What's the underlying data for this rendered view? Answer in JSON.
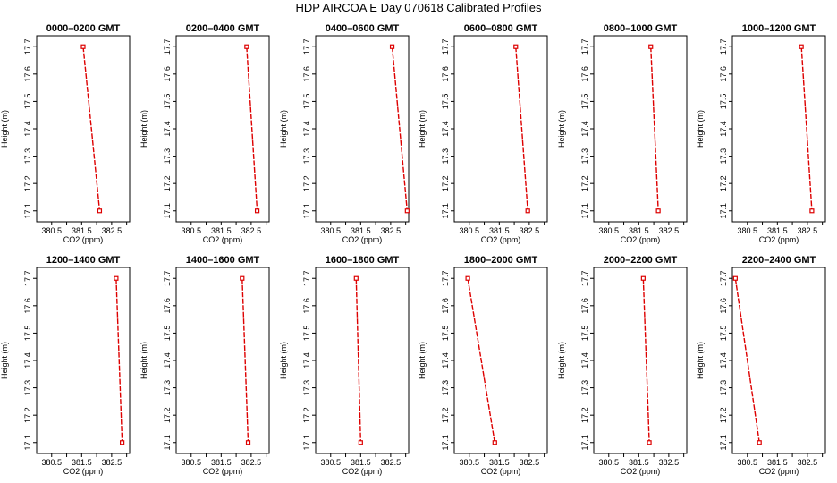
{
  "figure": {
    "title": "HDP  AIRCOA E  Day 070618  Calibrated Profiles",
    "line_color": "#dd0000",
    "point_color": "#dd0000",
    "axis_color": "#000000"
  },
  "chart_data": [
    {
      "type": "line",
      "title": "0000–0200 GMT",
      "xlabel": "CO2 (ppm)",
      "ylabel": "Height (m)",
      "xlim": [
        380.0,
        383.1
      ],
      "ylim": [
        17.06,
        17.74
      ],
      "xticks": [
        "380.5",
        "381.5",
        "382.5"
      ],
      "xticks_minor": [
        381.0,
        382.0,
        383.0
      ],
      "yticks": [
        "17.1",
        "17.2",
        "17.3",
        "17.4",
        "17.5",
        "17.6",
        "17.7"
      ],
      "grid": false,
      "series": [
        {
          "x": [
            381.55,
            382.1
          ],
          "y": [
            17.7,
            17.1
          ]
        }
      ]
    },
    {
      "type": "line",
      "title": "0200–0400 GMT",
      "xlabel": "CO2 (ppm)",
      "ylabel": "Height (m)",
      "xlim": [
        380.0,
        383.1
      ],
      "ylim": [
        17.06,
        17.74
      ],
      "xticks": [
        "380.5",
        "381.5",
        "382.5"
      ],
      "xticks_minor": [
        381.0,
        382.0,
        383.0
      ],
      "yticks": [
        "17.1",
        "17.2",
        "17.3",
        "17.4",
        "17.5",
        "17.6",
        "17.7"
      ],
      "grid": false,
      "series": [
        {
          "x": [
            382.35,
            382.7
          ],
          "y": [
            17.7,
            17.1
          ]
        }
      ]
    },
    {
      "type": "line",
      "title": "0400–0600 GMT",
      "xlabel": "CO2 (ppm)",
      "ylabel": "Height (m)",
      "xlim": [
        380.0,
        383.1
      ],
      "ylim": [
        17.06,
        17.74
      ],
      "xticks": [
        "380.5",
        "381.5",
        "382.5"
      ],
      "xticks_minor": [
        381.0,
        382.0,
        383.0
      ],
      "yticks": [
        "17.1",
        "17.2",
        "17.3",
        "17.4",
        "17.5",
        "17.6",
        "17.7"
      ],
      "grid": false,
      "series": [
        {
          "x": [
            382.55,
            383.05
          ],
          "y": [
            17.7,
            17.1
          ]
        }
      ]
    },
    {
      "type": "line",
      "title": "0600–0800 GMT",
      "xlabel": "CO2 (ppm)",
      "ylabel": "Height (m)",
      "xlim": [
        380.0,
        383.1
      ],
      "ylim": [
        17.06,
        17.74
      ],
      "xticks": [
        "380.5",
        "381.5",
        "382.5"
      ],
      "xticks_minor": [
        381.0,
        382.0,
        383.0
      ],
      "yticks": [
        "17.1",
        "17.2",
        "17.3",
        "17.4",
        "17.5",
        "17.6",
        "17.7"
      ],
      "grid": false,
      "series": [
        {
          "x": [
            382.05,
            382.45
          ],
          "y": [
            17.7,
            17.1
          ]
        }
      ]
    },
    {
      "type": "line",
      "title": "0800–1000 GMT",
      "xlabel": "CO2 (ppm)",
      "ylabel": "Height (m)",
      "xlim": [
        380.0,
        383.1
      ],
      "ylim": [
        17.06,
        17.74
      ],
      "xticks": [
        "380.5",
        "381.5",
        "382.5"
      ],
      "xticks_minor": [
        381.0,
        382.0,
        383.0
      ],
      "yticks": [
        "17.1",
        "17.2",
        "17.3",
        "17.4",
        "17.5",
        "17.6",
        "17.7"
      ],
      "grid": false,
      "series": [
        {
          "x": [
            381.9,
            382.15
          ],
          "y": [
            17.7,
            17.1
          ]
        }
      ]
    },
    {
      "type": "line",
      "title": "1000–1200 GMT",
      "xlabel": "CO2 (ppm)",
      "ylabel": "Height (m)",
      "xlim": [
        380.0,
        383.1
      ],
      "ylim": [
        17.06,
        17.74
      ],
      "xticks": [
        "380.5",
        "381.5",
        "382.5"
      ],
      "xticks_minor": [
        381.0,
        382.0,
        383.0
      ],
      "yticks": [
        "17.1",
        "17.2",
        "17.3",
        "17.4",
        "17.5",
        "17.6",
        "17.7"
      ],
      "grid": false,
      "series": [
        {
          "x": [
            382.3,
            382.65
          ],
          "y": [
            17.7,
            17.1
          ]
        }
      ]
    },
    {
      "type": "line",
      "title": "1200–1400 GMT",
      "xlabel": "CO2 (ppm)",
      "ylabel": "Height (m)",
      "xlim": [
        380.0,
        383.1
      ],
      "ylim": [
        17.06,
        17.74
      ],
      "xticks": [
        "380.5",
        "381.5",
        "382.5"
      ],
      "xticks_minor": [
        381.0,
        382.0,
        383.0
      ],
      "yticks": [
        "17.1",
        "17.2",
        "17.3",
        "17.4",
        "17.5",
        "17.6",
        "17.7"
      ],
      "grid": false,
      "series": [
        {
          "x": [
            382.65,
            382.85
          ],
          "y": [
            17.7,
            17.1
          ]
        }
      ]
    },
    {
      "type": "line",
      "title": "1400–1600 GMT",
      "xlabel": "CO2 (ppm)",
      "ylabel": "Height (m)",
      "xlim": [
        380.0,
        383.1
      ],
      "ylim": [
        17.06,
        17.74
      ],
      "xticks": [
        "380.5",
        "381.5",
        "382.5"
      ],
      "xticks_minor": [
        381.0,
        382.0,
        383.0
      ],
      "yticks": [
        "17.1",
        "17.2",
        "17.3",
        "17.4",
        "17.5",
        "17.6",
        "17.7"
      ],
      "grid": false,
      "series": [
        {
          "x": [
            382.2,
            382.4
          ],
          "y": [
            17.7,
            17.1
          ]
        }
      ]
    },
    {
      "type": "line",
      "title": "1600–1800 GMT",
      "xlabel": "CO2 (ppm)",
      "ylabel": "Height (m)",
      "xlim": [
        380.0,
        383.1
      ],
      "ylim": [
        17.06,
        17.74
      ],
      "xticks": [
        "380.5",
        "381.5",
        "382.5"
      ],
      "xticks_minor": [
        381.0,
        382.0,
        383.0
      ],
      "yticks": [
        "17.1",
        "17.2",
        "17.3",
        "17.4",
        "17.5",
        "17.6",
        "17.7"
      ],
      "grid": false,
      "series": [
        {
          "x": [
            381.35,
            381.5
          ],
          "y": [
            17.7,
            17.1
          ]
        }
      ]
    },
    {
      "type": "line",
      "title": "1800–2000 GMT",
      "xlabel": "CO2 (ppm)",
      "ylabel": "Height (m)",
      "xlim": [
        380.0,
        383.1
      ],
      "ylim": [
        17.06,
        17.74
      ],
      "xticks": [
        "380.5",
        "381.5",
        "382.5"
      ],
      "xticks_minor": [
        381.0,
        382.0,
        383.0
      ],
      "yticks": [
        "17.1",
        "17.2",
        "17.3",
        "17.4",
        "17.5",
        "17.6",
        "17.7"
      ],
      "grid": false,
      "series": [
        {
          "x": [
            380.45,
            381.35
          ],
          "y": [
            17.7,
            17.1
          ]
        }
      ]
    },
    {
      "type": "line",
      "title": "2000–2200 GMT",
      "xlabel": "CO2 (ppm)",
      "ylabel": "Height (m)",
      "xlim": [
        380.0,
        383.1
      ],
      "ylim": [
        17.06,
        17.74
      ],
      "xticks": [
        "380.5",
        "381.5",
        "382.5"
      ],
      "xticks_minor": [
        381.0,
        382.0,
        383.0
      ],
      "yticks": [
        "17.1",
        "17.2",
        "17.3",
        "17.4",
        "17.5",
        "17.6",
        "17.7"
      ],
      "grid": false,
      "series": [
        {
          "x": [
            381.65,
            381.85
          ],
          "y": [
            17.7,
            17.1
          ]
        }
      ]
    },
    {
      "type": "line",
      "title": "2200–2400 GMT",
      "xlabel": "CO2 (ppm)",
      "ylabel": "Height (m)",
      "xlim": [
        380.0,
        383.1
      ],
      "ylim": [
        17.06,
        17.74
      ],
      "xticks": [
        "380.5",
        "381.5",
        "382.5"
      ],
      "xticks_minor": [
        381.0,
        382.0,
        383.0
      ],
      "yticks": [
        "17.1",
        "17.2",
        "17.3",
        "17.4",
        "17.5",
        "17.6",
        "17.7"
      ],
      "grid": false,
      "series": [
        {
          "x": [
            380.1,
            380.9
          ],
          "y": [
            17.7,
            17.1
          ]
        }
      ]
    }
  ]
}
